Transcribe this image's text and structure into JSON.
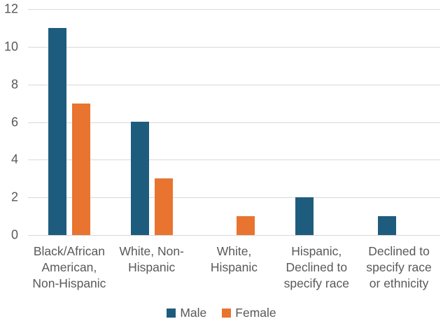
{
  "chart_data": {
    "type": "bar",
    "title": "",
    "xlabel": "",
    "ylabel": "",
    "categories": [
      "Black/African American, Non-Hispanic",
      "White, Non-Hispanic",
      "White, Hispanic",
      "Hispanic, Declined to specify race",
      "Declined to specify race or ethnicity"
    ],
    "category_label_lines": [
      [
        "Black/African",
        "American,",
        "Non-Hispanic"
      ],
      [
        "White, Non-",
        "Hispanic"
      ],
      [
        "White,",
        "Hispanic"
      ],
      [
        "Hispanic,",
        "Declined to",
        "specify race"
      ],
      [
        "Declined to",
        "specify race",
        "or ethnicity"
      ]
    ],
    "series": [
      {
        "name": "Male",
        "color": "#1E5C7E",
        "values": [
          11,
          6,
          0,
          2,
          1
        ]
      },
      {
        "name": "Female",
        "color": "#E87430",
        "values": [
          7,
          3,
          1,
          0,
          0
        ]
      }
    ],
    "ylim": [
      0,
      12
    ],
    "yticks": [
      0,
      2,
      4,
      6,
      8,
      10,
      12
    ],
    "grid": true,
    "legend_position": "bottom",
    "colors": {
      "gridline": "#D9D9D9",
      "text": "#595959",
      "background": "#FFFFFF"
    }
  }
}
